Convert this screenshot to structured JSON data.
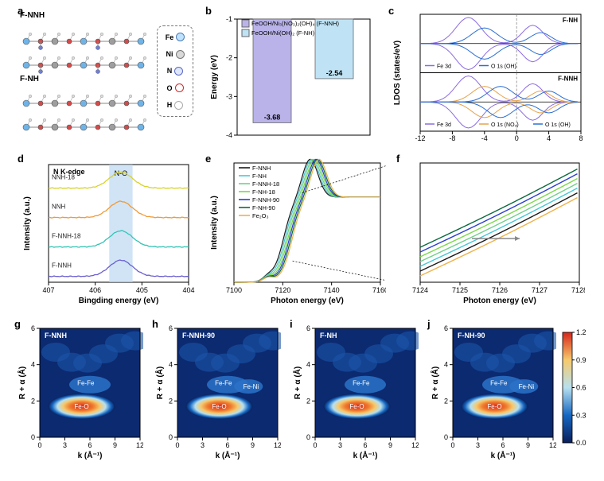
{
  "panel_a": {
    "label": "a",
    "titles": [
      "F-NNH",
      "F-NH"
    ],
    "legend": [
      {
        "sym": "Fe",
        "fill": "#bfe3ff",
        "stroke": "#4a7bb5"
      },
      {
        "sym": "Ni",
        "fill": "#d9d9d9",
        "stroke": "#777"
      },
      {
        "sym": "N",
        "fill": "#dfe7fb",
        "stroke": "#5968c9"
      },
      {
        "sym": "O",
        "fill": "#ffffff",
        "stroke": "#cc2b2b"
      },
      {
        "sym": "H",
        "fill": "#ffffff",
        "stroke": "#aaaaaa"
      }
    ],
    "atom_colors": {
      "Fe": "#6fb4e8",
      "Ni": "#9e9e9e",
      "N": "#6d7fd6",
      "O": "#d14b4b",
      "H": "#dcdcdc"
    }
  },
  "panel_b": {
    "label": "b",
    "ylabel": "Energy (eV)",
    "ylim": [
      -4,
      -1
    ],
    "yticks": [
      -1,
      -2,
      -3,
      -4
    ],
    "legend": [
      {
        "text": "FeOOH/Ni₃(NO₃)₂(OH)₄ (F-NNH)",
        "color": "#b9b3ea"
      },
      {
        "text": "FeOOH/Ni(OH)₂ (F-NH)",
        "color": "#bfe3f5"
      }
    ],
    "bars": [
      {
        "value": -3.68,
        "color": "#b9b3ea",
        "label": "-3.68"
      },
      {
        "value": -2.54,
        "color": "#bfe3f5",
        "label": "-2.54"
      }
    ],
    "bar_width": 0.35,
    "background": "#ffffff"
  },
  "panel_c": {
    "label": "c",
    "ylabel": "LDOS (states/eV)",
    "xlabel": "Energy (eV)",
    "xlim": [
      -12,
      8
    ],
    "xticks": [
      -12,
      -8,
      -4,
      0,
      4,
      8
    ],
    "subpanels": [
      {
        "title": "F-NH",
        "series": [
          {
            "name": "Fe 3d",
            "color": "#8a6be0"
          },
          {
            "name": "O 1s (OH)",
            "color": "#2a6fd6"
          }
        ]
      },
      {
        "title": "F-NNH",
        "series": [
          {
            "name": "Fe 3d",
            "color": "#8a6be0"
          },
          {
            "name": "O 1s (NO₃)",
            "color": "#e6a24a"
          },
          {
            "name": "O 1s (OH)",
            "color": "#2a6fd6"
          }
        ]
      }
    ]
  },
  "panel_d": {
    "label": "d",
    "title": "N K-edge",
    "band_label": "N-O",
    "xlabel": "Bingding energy (eV)",
    "ylabel": "Intensity (a.u.)",
    "xlim": [
      407,
      404
    ],
    "xticks": [
      407,
      406,
      405,
      404
    ],
    "band_x": [
      405.7,
      405.2
    ],
    "curves": [
      {
        "name": "NNH-18",
        "color": "#d8d22d"
      },
      {
        "name": "NNH",
        "color": "#ef9a3a"
      },
      {
        "name": "F-NNH-18",
        "color": "#34c4b4"
      },
      {
        "name": "F-NNH",
        "color": "#6a5fd0"
      }
    ]
  },
  "panel_e": {
    "label": "e",
    "xlabel": "Photon energy (eV)",
    "ylabel": "Intensity (a.u.)",
    "xlim": [
      7100,
      7160
    ],
    "xticks": [
      7100,
      7120,
      7140,
      7160
    ],
    "legend": [
      {
        "name": "F-NNH",
        "color": "#1a1a1a"
      },
      {
        "name": "F-NH",
        "color": "#49c6d6"
      },
      {
        "name": "F-NNH-18",
        "color": "#6fd08a"
      },
      {
        "name": "F-NH-18",
        "color": "#7ad94a"
      },
      {
        "name": "F-NNH-90",
        "color": "#2a3fd0"
      },
      {
        "name": "F-NH-90",
        "color": "#0a6b3d"
      },
      {
        "name": "Fe₂O₃",
        "color": "#efb24a"
      }
    ]
  },
  "panel_f": {
    "label": "f",
    "xlabel": "Photon energy (eV)",
    "xlim": [
      7124,
      7128
    ],
    "xticks": [
      7124,
      7125,
      7126,
      7127,
      7128
    ],
    "arrow_color": "#888888",
    "order": [
      {
        "name": "Fe₂O₃",
        "color": "#efb24a"
      },
      {
        "name": "F-NNH",
        "color": "#1a1a1a"
      },
      {
        "name": "F-NH",
        "color": "#49c6d6"
      },
      {
        "name": "F-NNH-18",
        "color": "#6fd08a"
      },
      {
        "name": "F-NH-18",
        "color": "#7ad94a"
      },
      {
        "name": "F-NNH-90",
        "color": "#2a3fd0"
      },
      {
        "name": "F-NH-90",
        "color": "#0a6b3d"
      }
    ]
  },
  "wavelet_common": {
    "xlabel": "k (Å⁻¹)",
    "ylabel": "R + α (Å)",
    "xlim": [
      0,
      12
    ],
    "xticks": [
      0,
      3,
      6,
      9,
      12
    ],
    "ylim": [
      0,
      6
    ],
    "yticks": [
      0,
      2,
      4,
      6
    ],
    "bg_gradient": [
      "#0a1f5a",
      "#0d3b8c",
      "#1567c2",
      "#4aa3e0",
      "#b7e0ef",
      "#f3efe6",
      "#f7c96b",
      "#ef7a2e",
      "#d7261a"
    ],
    "hotspot_label": "Fe-O",
    "fe_fe_label": "Fe-Fe",
    "fe_ni_label": "Fe-Ni"
  },
  "panels_wavelet": [
    {
      "id": "g",
      "label": "g",
      "title": "F-NNH",
      "show_fe_ni": false
    },
    {
      "id": "h",
      "label": "h",
      "title": "F-NNH-90",
      "show_fe_ni": true
    },
    {
      "id": "i",
      "label": "i",
      "title": "F-NH",
      "show_fe_ni": false
    },
    {
      "id": "j",
      "label": "j",
      "title": "F-NH-90",
      "show_fe_ni": true
    }
  ],
  "colorbar": {
    "ticks": [
      0.0,
      0.3,
      0.6,
      0.9,
      1.2
    ],
    "gradient": [
      "#0a1f5a",
      "#1567c2",
      "#b7e0ef",
      "#f7c96b",
      "#d7261a"
    ]
  }
}
